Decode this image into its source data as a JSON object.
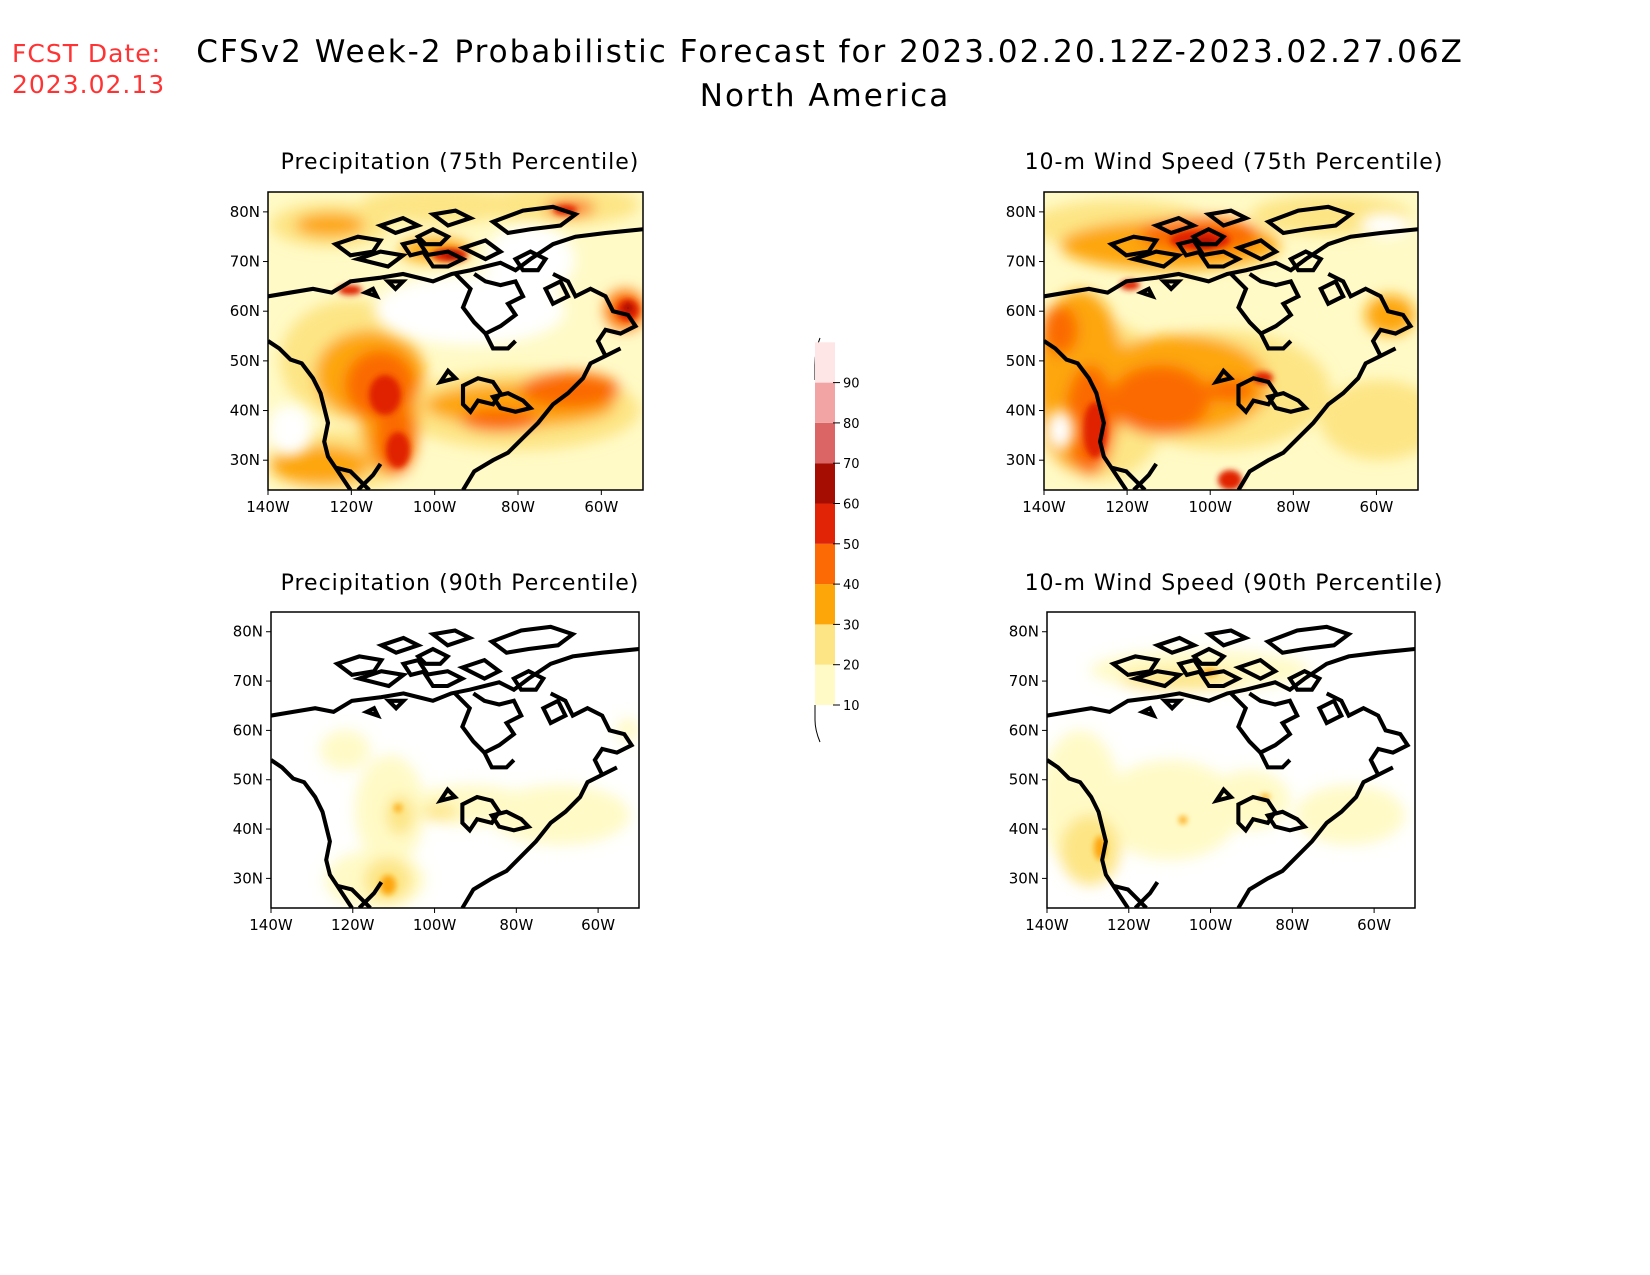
{
  "header": {
    "fcst_label": "FCST Date:",
    "fcst_date": "2023.02.13",
    "title": "CFSv2 Week-2 Probabilistic Forecast for 2023.02.20.12Z-2023.02.27.06Z",
    "subtitle": "North America"
  },
  "panels": [
    {
      "title": "Precipitation (75th Percentile)"
    },
    {
      "title": "10-m Wind Speed (75th Percentile)"
    },
    {
      "title": "Precipitation (90th Percentile)"
    },
    {
      "title": "10-m Wind Speed (90th Percentile)"
    }
  ],
  "axes": {
    "lat_labels": [
      "80N",
      "70N",
      "60N",
      "50N",
      "40N",
      "30N"
    ],
    "lon_labels": [
      "140W",
      "120W",
      "100W",
      "80W",
      "60W"
    ]
  },
  "colorbar": {
    "levels": [
      "10",
      "20",
      "30",
      "40",
      "50",
      "60",
      "70",
      "80",
      "90"
    ],
    "colors": [
      "#fffac6",
      "#fde585",
      "#fda60a",
      "#fb6a04",
      "#e02405",
      "#a50d03",
      "#db6464",
      "#f2a3a3",
      "#fee6e6"
    ]
  },
  "colors": {
    "fcst_date": "#ff3333"
  }
}
